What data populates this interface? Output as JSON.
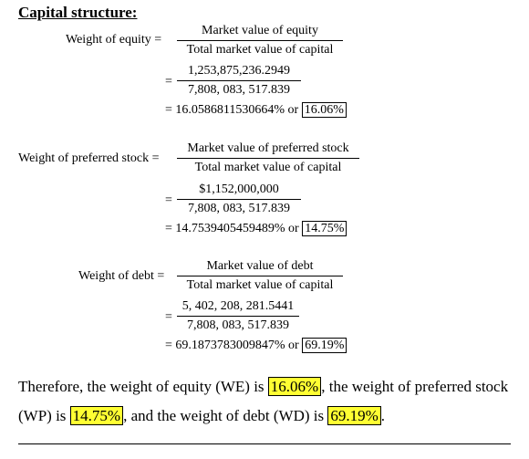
{
  "heading": "Capital structure:",
  "equity": {
    "label": "Weight of equity =",
    "formula_num": "Market value of equity",
    "formula_den": "Total market value of capital",
    "values_num": "1,253,875,236.2949",
    "values_den": "7,808, 083, 517.839",
    "result_prefix": "= 16.0586811530664% or",
    "result_boxed": "16.06%"
  },
  "preferred": {
    "label": "Weight of preferred stock =",
    "formula_num": "Market value of preferred stock",
    "formula_den": "Total market value of capital",
    "values_num": "$1,152,000,000",
    "values_den": "7,808, 083, 517.839",
    "result_prefix": "= 14.7539405459489% or",
    "result_boxed": "14.75%"
  },
  "debt": {
    "label": "Weight of debt =",
    "formula_num": "Market value of debt",
    "formula_den": "Total market value of capital",
    "values_num": "5, 402, 208, 281.5441",
    "values_den": "7,808, 083, 517.839",
    "result_prefix": "= 69.1873783009847% or",
    "result_boxed": "69.19%"
  },
  "equals_sign": "=",
  "summary": {
    "part1": "Therefore, the weight of equity (WE) is",
    "we": "16.06%",
    "part2": ", the weight of preferred stock (WP) is",
    "wp": "14.75%",
    "part3": ", and the weight of debt (WD) is",
    "wd": "69.19%",
    "part4": "."
  }
}
